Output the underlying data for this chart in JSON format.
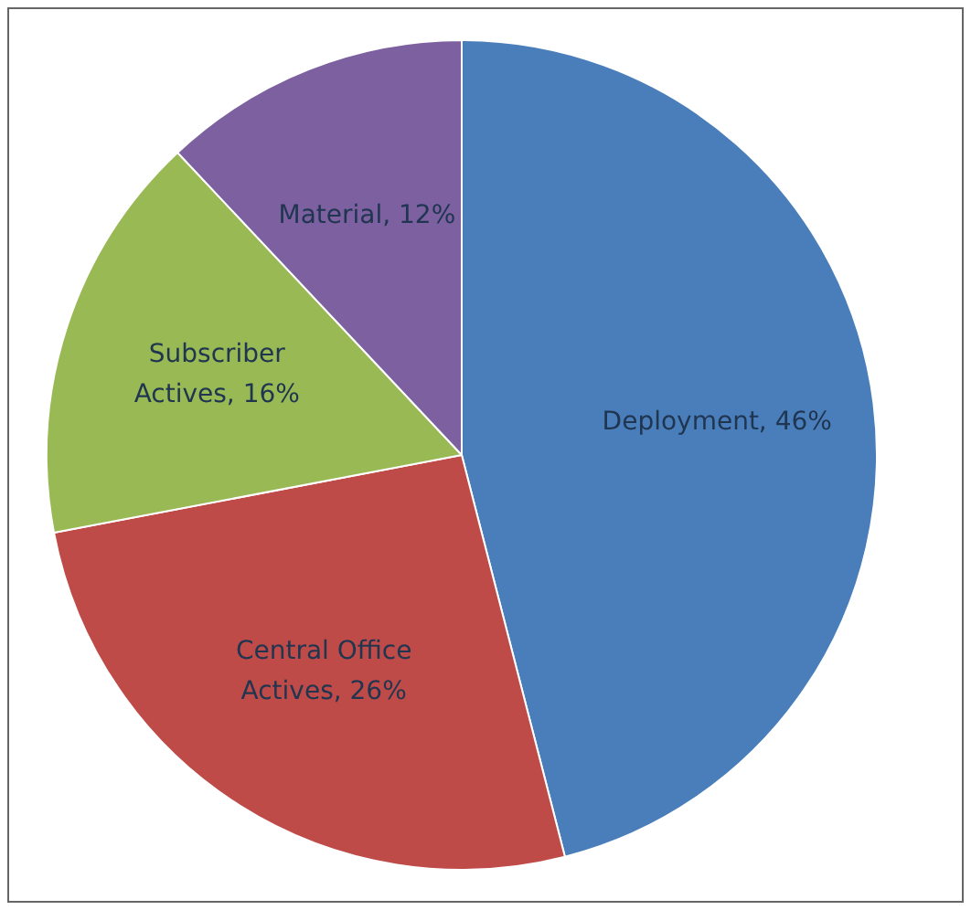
{
  "chart_data": {
    "type": "pie",
    "categories": [
      "Deployment",
      "Central Office Actives",
      "Subscriber Actives",
      "Material"
    ],
    "values": [
      46,
      26,
      16,
      12
    ],
    "value_labels": [
      "46%",
      "26%",
      "16%",
      "12%"
    ],
    "colors": [
      "#4a7ebb",
      "#be4b48",
      "#98b954",
      "#7d60a0"
    ],
    "legend": false
  }
}
